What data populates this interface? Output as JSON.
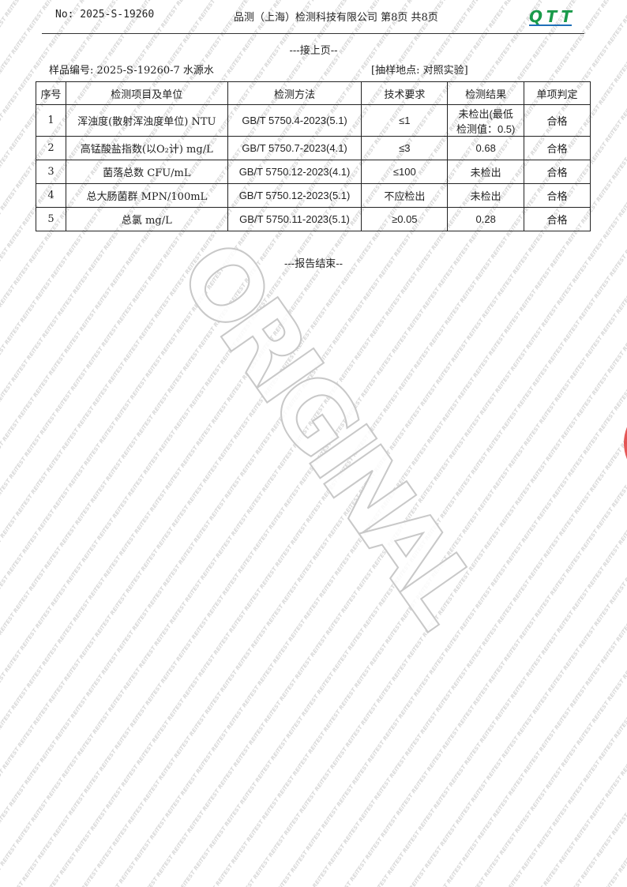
{
  "header": {
    "report_no": "No: 2025-S-19260",
    "company": "品测（上海）检测科技有限公司 第8页 共8页",
    "logo_text": "QTT"
  },
  "continued": "---接上页--",
  "sample": {
    "id": "样品编号: 2025-S-19260-7 水源水",
    "site": "[抽样地点: 对照实验]"
  },
  "table": {
    "headers": [
      "序号",
      "检测项目及单位",
      "检测方法",
      "技术要求",
      "检测结果",
      "单项判定"
    ],
    "rows": [
      [
        "1",
        "浑浊度(散射浑浊度单位) NTU",
        "GB/T 5750.4-2023(5.1)",
        "≤1",
        "未检出(最低检测值：0.5)",
        "合格"
      ],
      [
        "2",
        "高锰酸盐指数(以O₂计) mg/L",
        "GB/T 5750.7-2023(4.1)",
        "≤3",
        "0.68",
        "合格"
      ],
      [
        "3",
        "菌落总数 CFU/mL",
        "GB/T 5750.12-2023(4.1)",
        "≤100",
        "未检出",
        "合格"
      ],
      [
        "4",
        "总大肠菌群 MPN/100mL",
        "GB/T 5750.12-2023(5.1)",
        "不应检出",
        "未检出",
        "合格"
      ],
      [
        "5",
        "总氯 mg/L",
        "GB/T 5750.11-2023(5.1)",
        "≥0.05",
        "0.28",
        "合格"
      ]
    ]
  },
  "end": "---报告结束--",
  "watermarks": {
    "pattern": "TEST REPORT",
    "big": "ORIGINAL"
  },
  "colors": {
    "logo_green": "#1a9a4a",
    "logo_blue": "#1f6fb8",
    "stamp_red": "#e23a3a"
  }
}
